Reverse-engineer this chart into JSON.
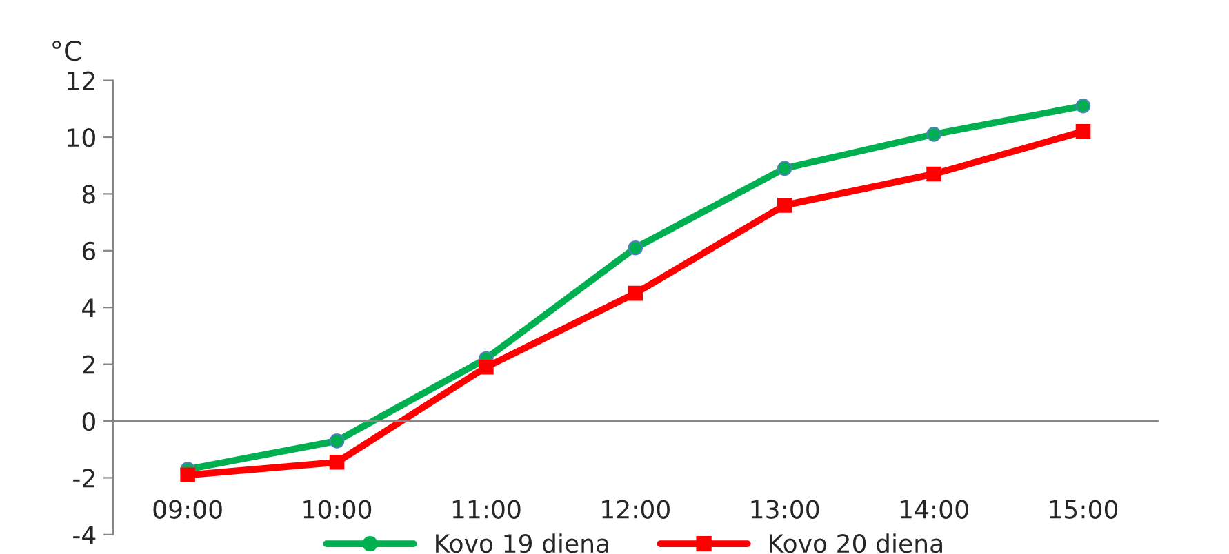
{
  "chart_data": {
    "type": "line",
    "ylabel": "°C",
    "categories": [
      "09:00",
      "10:00",
      "11:00",
      "12:00",
      "13:00",
      "14:00",
      "15:00"
    ],
    "series": [
      {
        "name": "Kovo 19 diena",
        "color": "#00b050",
        "marker": "circle",
        "values": [
          -1.7,
          -0.7,
          2.2,
          6.1,
          8.9,
          10.1,
          11.1
        ]
      },
      {
        "name": "Kovo 20 diena",
        "color": "#ff0000",
        "marker": "square",
        "values": [
          -1.9,
          -1.45,
          1.9,
          4.5,
          7.6,
          8.7,
          10.2
        ]
      }
    ],
    "ylim": [
      -4,
      12
    ],
    "yticks": [
      -4,
      -2,
      0,
      2,
      4,
      6,
      8,
      10,
      12
    ],
    "legend": "bottom",
    "line_style": "solid"
  }
}
